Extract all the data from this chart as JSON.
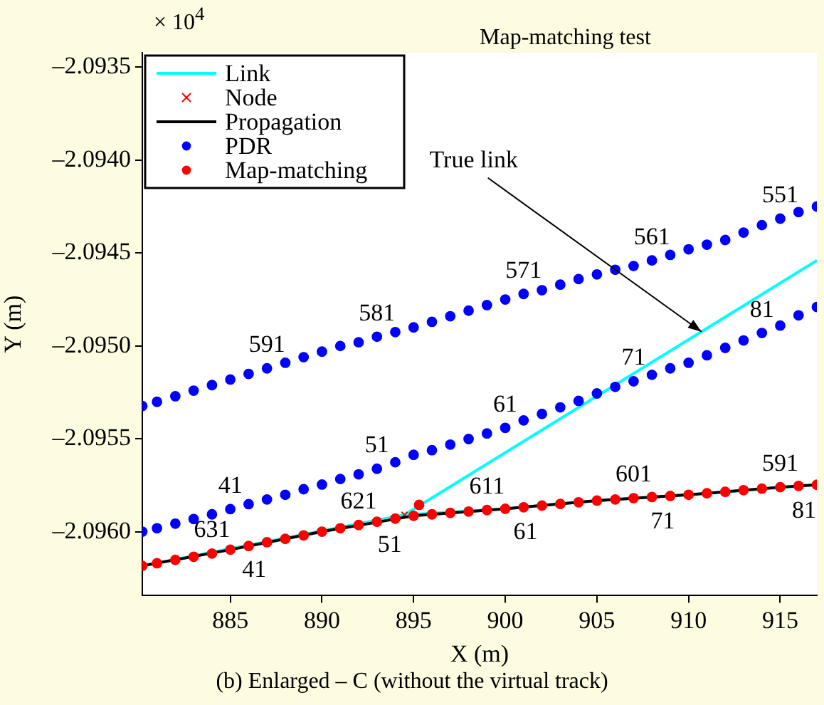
{
  "chart_data": {
    "type": "scatter",
    "title": "Map-matching test",
    "xlabel": "X (m)",
    "ylabel": "Y (m)",
    "xlim": [
      880.2,
      917
    ],
    "xticks": [
      885,
      890,
      895,
      900,
      905,
      910,
      915
    ],
    "ylim": [
      -2.096342,
      -2.093423
    ],
    "yticks": [
      {
        "value": -2.0935,
        "label": "–2.0935"
      },
      {
        "value": -2.094,
        "label": "–2.0940"
      },
      {
        "value": -2.0945,
        "label": "–2.0945"
      },
      {
        "value": -2.095,
        "label": "–2.0950"
      },
      {
        "value": -2.0955,
        "label": "–2.0955"
      },
      {
        "value": -2.096,
        "label": "–2.0960"
      }
    ],
    "grid": false,
    "legend": "top left",
    "series": [
      {
        "name": "Link",
        "type": "line",
        "color": "#00ffff",
        "marker": "none",
        "x": [
          880.2,
          894.5,
          900,
          905,
          910,
          917,
          null,
          894.5,
          917
        ],
        "values": [
          -2.096182,
          -2.095908,
          -2.095875,
          -2.095831,
          -2.0958,
          -2.095746,
          null,
          -2.095908,
          -2.09454
        ]
      },
      {
        "name": "Node",
        "color": "#ff0000",
        "marker": "cross",
        "x": [
          894.5
        ],
        "values": [
          -2.095908
        ]
      },
      {
        "name": "Propagation",
        "type": "line",
        "color": "#000000",
        "marker": "none",
        "x": [
          880.2,
          885,
          890,
          895,
          900,
          905,
          910,
          915,
          917
        ],
        "values": [
          -2.096182,
          -2.096095,
          -2.095998,
          -2.095913,
          -2.095875,
          -2.095831,
          -2.0958,
          -2.095759,
          -2.095746
        ]
      },
      {
        "name": "PDR",
        "color": "#0000ff",
        "marker": "circle",
        "x": [
          880.2,
          881,
          882,
          883,
          884,
          885,
          886,
          887,
          888,
          889,
          890,
          891,
          892,
          893,
          894,
          895,
          896,
          897,
          898,
          899,
          900,
          901,
          902,
          903,
          904,
          905,
          906,
          907,
          908,
          909,
          910,
          911,
          912,
          913,
          914,
          915,
          916,
          917,
          880.2,
          881,
          882,
          883,
          884,
          885,
          886,
          887,
          888,
          889,
          890,
          891,
          892,
          893,
          894,
          895,
          896,
          897,
          898,
          899,
          900,
          901,
          902,
          903,
          904,
          905,
          906,
          907,
          908,
          909,
          910,
          911,
          912,
          913,
          914,
          915,
          916,
          917
        ],
        "values": [
          -2.095323,
          -2.0953,
          -2.09527,
          -2.09524,
          -2.09521,
          -2.09518,
          -2.09515,
          -2.09512,
          -2.09509,
          -2.09506,
          -2.09503,
          -2.095,
          -2.09498,
          -2.09495,
          -2.094925,
          -2.0949,
          -2.09487,
          -2.09484,
          -2.09481,
          -2.09478,
          -2.09475,
          -2.09472,
          -2.0947,
          -2.09467,
          -2.09464,
          -2.094615,
          -2.09459,
          -2.09457,
          -2.09454,
          -2.09451,
          -2.09448,
          -2.094455,
          -2.09443,
          -2.09439,
          -2.09435,
          -2.094315,
          -2.09428,
          -2.09425,
          -2.095998,
          -2.09598,
          -2.095955,
          -2.09593,
          -2.095905,
          -2.095877,
          -2.09585,
          -2.095825,
          -2.0958,
          -2.09577,
          -2.095745,
          -2.095715,
          -2.09569,
          -2.09566,
          -2.095625,
          -2.095585,
          -2.09556,
          -2.09553,
          -2.0955,
          -2.09547,
          -2.09544,
          -2.0954,
          -2.095365,
          -2.09533,
          -2.095295,
          -2.095255,
          -2.09522,
          -2.09519,
          -2.095155,
          -2.09512,
          -2.09509,
          -2.09505,
          -2.09501,
          -2.09497,
          -2.09493,
          -2.09489,
          -2.094835,
          -2.09479
        ]
      },
      {
        "name": "Map-matching",
        "color": "#ff0000",
        "marker": "circle",
        "x": [
          880.2,
          881,
          882,
          883,
          884,
          885,
          886,
          887,
          888,
          889,
          890,
          891,
          892,
          893,
          894,
          895,
          895.3,
          896,
          897,
          898,
          899,
          900,
          901,
          902,
          903,
          904,
          905,
          906,
          907,
          908,
          909,
          910,
          911,
          912,
          913,
          914,
          915,
          916,
          917
        ],
        "values": [
          -2.096182,
          -2.096168,
          -2.09615,
          -2.096133,
          -2.096116,
          -2.096095,
          -2.096075,
          -2.096055,
          -2.096037,
          -2.096018,
          -2.095998,
          -2.09598,
          -2.095962,
          -2.095945,
          -2.095928,
          -2.095913,
          -2.095854,
          -2.095905,
          -2.095897,
          -2.09589,
          -2.095882,
          -2.095875,
          -2.095867,
          -2.095858,
          -2.095849,
          -2.09584,
          -2.095831,
          -2.095825,
          -2.095818,
          -2.095812,
          -2.095806,
          -2.0958,
          -2.095792,
          -2.095784,
          -2.095775,
          -2.095767,
          -2.095759,
          -2.095752,
          -2.095746
        ]
      }
    ],
    "annotations": [
      "× 10$^{4}$",
      {
        "text": "True link",
        "x": 910.7,
        "y": -2.094923
      },
      {
        "text": "591",
        "x": 887,
        "y": -2.09512
      },
      {
        "text": "581",
        "x": 893,
        "y": -2.09495
      },
      {
        "text": "571",
        "x": 901,
        "y": -2.09472
      },
      {
        "text": "561",
        "x": 908,
        "y": -2.09454
      },
      {
        "text": "551",
        "x": 915,
        "y": -2.094315
      },
      {
        "text": "41",
        "x": 885,
        "y": -2.095877
      },
      {
        "text": "51",
        "x": 893,
        "y": -2.09566
      },
      {
        "text": "61",
        "x": 900,
        "y": -2.09544
      },
      {
        "text": "71",
        "x": 907,
        "y": -2.09519
      },
      {
        "text": "81",
        "x": 914,
        "y": -2.09493
      },
      {
        "text": "631",
        "x": 884,
        "y": -2.096116
      },
      {
        "text": "621",
        "x": 892,
        "y": -2.095962
      },
      {
        "text": "611",
        "x": 899,
        "y": -2.095882
      },
      {
        "text": "601",
        "x": 907,
        "y": -2.095818
      },
      {
        "text": "591",
        "x": 915,
        "y": -2.095759
      },
      {
        "text": "41",
        "x": 886.3,
        "y": -2.09607
      },
      {
        "text": "51",
        "x": 893.7,
        "y": -2.095935
      },
      {
        "text": "61",
        "x": 901.1,
        "y": -2.095865
      },
      {
        "text": "71",
        "x": 908.6,
        "y": -2.095809
      },
      {
        "text": "81",
        "x": 916.3,
        "y": -2.095751
      },
      "(b) Enlarged – C (without the virtual track)"
    ]
  }
}
